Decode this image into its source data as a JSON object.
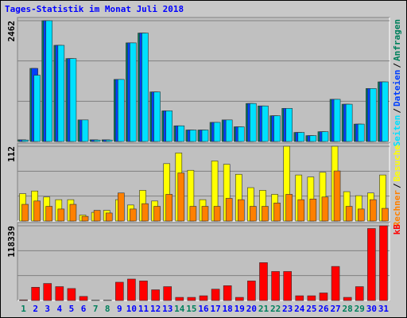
{
  "title": "Tages-Statistik im Monat Juli 2018",
  "legend_separator": "/",
  "chart_data": [
    {
      "type": "bar",
      "ylim": [
        0,
        2462
      ],
      "yticks": [
        2462
      ],
      "series": [
        {
          "name": "Anfragen",
          "color": "#00805c",
          "values": [
            35,
            1490,
            2462,
            1960,
            1690,
            440,
            35,
            35,
            1265,
            2010,
            2210,
            1010,
            625,
            320,
            235,
            235,
            390,
            440,
            300,
            775,
            725,
            525,
            675,
            185,
            120,
            200,
            860,
            760,
            355,
            1080,
            1215
          ]
        },
        {
          "name": "Dateien",
          "color": "#0040ff",
          "values": [
            35,
            1490,
            2462,
            1960,
            1690,
            440,
            35,
            35,
            1265,
            2010,
            2210,
            1010,
            625,
            320,
            235,
            235,
            390,
            440,
            300,
            775,
            725,
            525,
            675,
            185,
            120,
            200,
            860,
            760,
            355,
            1080,
            1215
          ]
        },
        {
          "name": "Seiten",
          "color": "#00e0ff",
          "values": [
            30,
            1350,
            2462,
            1960,
            1690,
            440,
            30,
            30,
            1265,
            2010,
            2210,
            1010,
            625,
            320,
            235,
            235,
            390,
            440,
            300,
            775,
            725,
            525,
            675,
            185,
            120,
            200,
            860,
            760,
            355,
            1080,
            1215
          ]
        }
      ]
    },
    {
      "type": "bar",
      "ylim": [
        0,
        112
      ],
      "yticks": [
        112
      ],
      "series": [
        {
          "name": "Besuche",
          "color": "#ffff00",
          "values": [
            41,
            45,
            36,
            32,
            32,
            9,
            13,
            16,
            32,
            24,
            46,
            30,
            86,
            102,
            76,
            32,
            90,
            85,
            70,
            50,
            46,
            40,
            112,
            69,
            66,
            73,
            112,
            44,
            38,
            42,
            69
          ]
        },
        {
          "name": "Rechner",
          "color": "#ff8000",
          "values": [
            25,
            30,
            22,
            18,
            25,
            7,
            16,
            12,
            42,
            18,
            26,
            22,
            40,
            72,
            22,
            22,
            22,
            34,
            32,
            22,
            22,
            27,
            40,
            32,
            33,
            36,
            75,
            22,
            18,
            32,
            19
          ]
        }
      ]
    },
    {
      "type": "bar",
      "ylim": [
        0,
        118339
      ],
      "yticks": [
        118339
      ],
      "categories": [
        "1",
        "2",
        "3",
        "4",
        "5",
        "6",
        "7",
        "8",
        "9",
        "10",
        "11",
        "12",
        "13",
        "14",
        "15",
        "16",
        "17",
        "18",
        "19",
        "20",
        "21",
        "22",
        "23",
        "24",
        "25",
        "26",
        "27",
        "28",
        "29",
        "30",
        "31"
      ],
      "category_colors": [
        "#00805c",
        "#0000ff",
        "#0000ff",
        "#0000ff",
        "#0000ff",
        "#0000ff",
        "#00805c",
        "#00805c",
        "#0000ff",
        "#0000ff",
        "#0000ff",
        "#0000ff",
        "#0000ff",
        "#00805c",
        "#00805c",
        "#0000ff",
        "#0000ff",
        "#0000ff",
        "#0000ff",
        "#0000ff",
        "#00805c",
        "#00805c",
        "#0000ff",
        "#0000ff",
        "#0000ff",
        "#0000ff",
        "#0000ff",
        "#00805c",
        "#00805c",
        "#0000ff",
        "#0000ff"
      ],
      "series": [
        {
          "name": "kB",
          "color": "#ff0000",
          "values": [
            1000,
            21000,
            27000,
            22000,
            19000,
            6500,
            500,
            500,
            29000,
            34000,
            31000,
            17000,
            22000,
            5000,
            5000,
            7500,
            18000,
            23500,
            5000,
            31000,
            60000,
            46000,
            46000,
            7500,
            7500,
            12000,
            54000,
            5000,
            22000,
            114000,
            118339
          ]
        }
      ]
    }
  ]
}
